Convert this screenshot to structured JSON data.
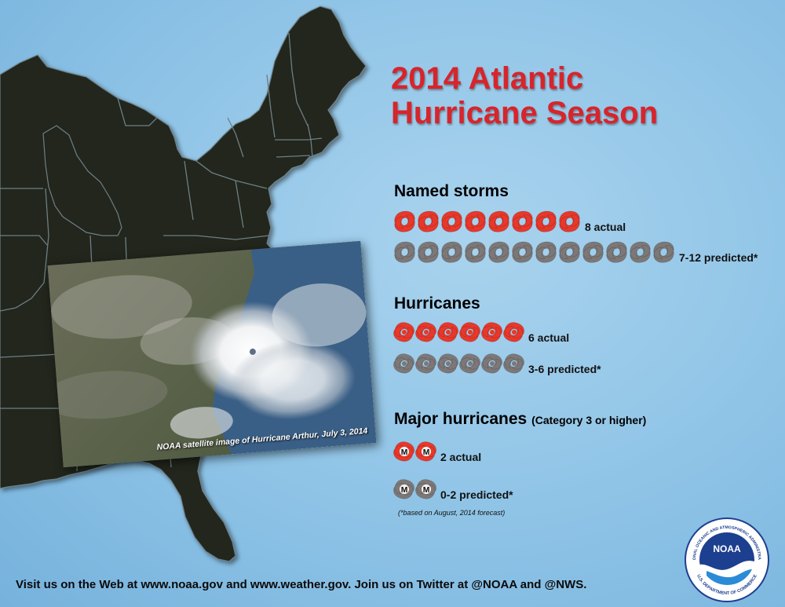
{
  "title": {
    "line1": "2014 Atlantic",
    "line2": "Hurricane Season"
  },
  "sections": {
    "named_storms": {
      "title": "Named storms",
      "actual_label": "8 actual",
      "predicted_label": "7-12 predicted*",
      "actual_count": 8,
      "predicted_icon_count": 12
    },
    "hurricanes": {
      "title": "Hurricanes",
      "actual_label": "6 actual",
      "predicted_label": "3-6 predicted*",
      "actual_count": 6,
      "predicted_icon_count": 6
    },
    "major_hurricanes": {
      "title": "Major hurricanes",
      "subtitle": "(Category 3 or higher)",
      "actual_label": "2 actual",
      "predicted_label": "0-2 predicted*",
      "actual_count": 2,
      "predicted_icon_count": 2,
      "icon_letter": "M"
    }
  },
  "footnote": "(*based on August, 2014 forecast)",
  "satellite_caption": "NOAA satellite image of Hurricane Arthur, July 3, 2014",
  "footer": "Visit us on the Web at www.noaa.gov and www.weather.gov. Join us on Twitter at @NOAA and @NWS.",
  "logo": {
    "center_text": "NOAA",
    "ring_top": "NATIONAL OCEANIC AND ATMOSPHERIC ADMINISTRATION",
    "ring_bottom": "U.S. DEPARTMENT OF COMMERCE"
  },
  "colors": {
    "actual": "#e8382b",
    "predicted": "#7d7878",
    "title": "#d8242b",
    "land": "#24281f",
    "background": "#8ec3e6"
  },
  "icons": {
    "storm": "tropical-storm-icon",
    "hurricane": "hurricane-icon",
    "major": "major-hurricane-icon"
  }
}
